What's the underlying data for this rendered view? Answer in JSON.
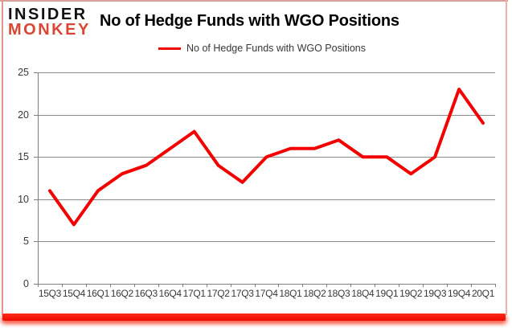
{
  "brand": {
    "line1": "INSIDER",
    "line2": "MONKEY"
  },
  "header": {
    "title": "No of Hedge Funds with WGO Positions"
  },
  "legend": {
    "label": "No of Hedge Funds with WGO Positions"
  },
  "colors": {
    "line": "#f40000",
    "grid": "#8c8c8c",
    "axis": "#7f7f7f",
    "tick_text": "#383838",
    "title_text": "#000000",
    "brand_red": "#d94733",
    "frame_border": "#e5958c",
    "bottom_bar": "#fb0f02"
  },
  "chart_data": {
    "type": "line",
    "title": "No of Hedge Funds with WGO Positions",
    "categories": [
      "15Q3",
      "15Q4",
      "16Q1",
      "16Q2",
      "16Q3",
      "16Q4",
      "17Q1",
      "17Q2",
      "17Q3",
      "17Q4",
      "18Q1",
      "18Q2",
      "18Q3",
      "18Q4",
      "19Q1",
      "19Q2",
      "19Q3",
      "19Q4",
      "20Q1"
    ],
    "series": [
      {
        "name": "No of Hedge Funds with WGO Positions",
        "color": "#f40000",
        "values": [
          11,
          7,
          11,
          13,
          14,
          16,
          18,
          14,
          12,
          15,
          16,
          16,
          17,
          15,
          15,
          13,
          15,
          23,
          19
        ]
      }
    ],
    "ylim": [
      0,
      25
    ],
    "yticks": [
      0,
      5,
      10,
      15,
      20,
      25
    ],
    "xlabel": "",
    "ylabel": "",
    "grid": "horizontal",
    "legend_position": "top-center"
  }
}
